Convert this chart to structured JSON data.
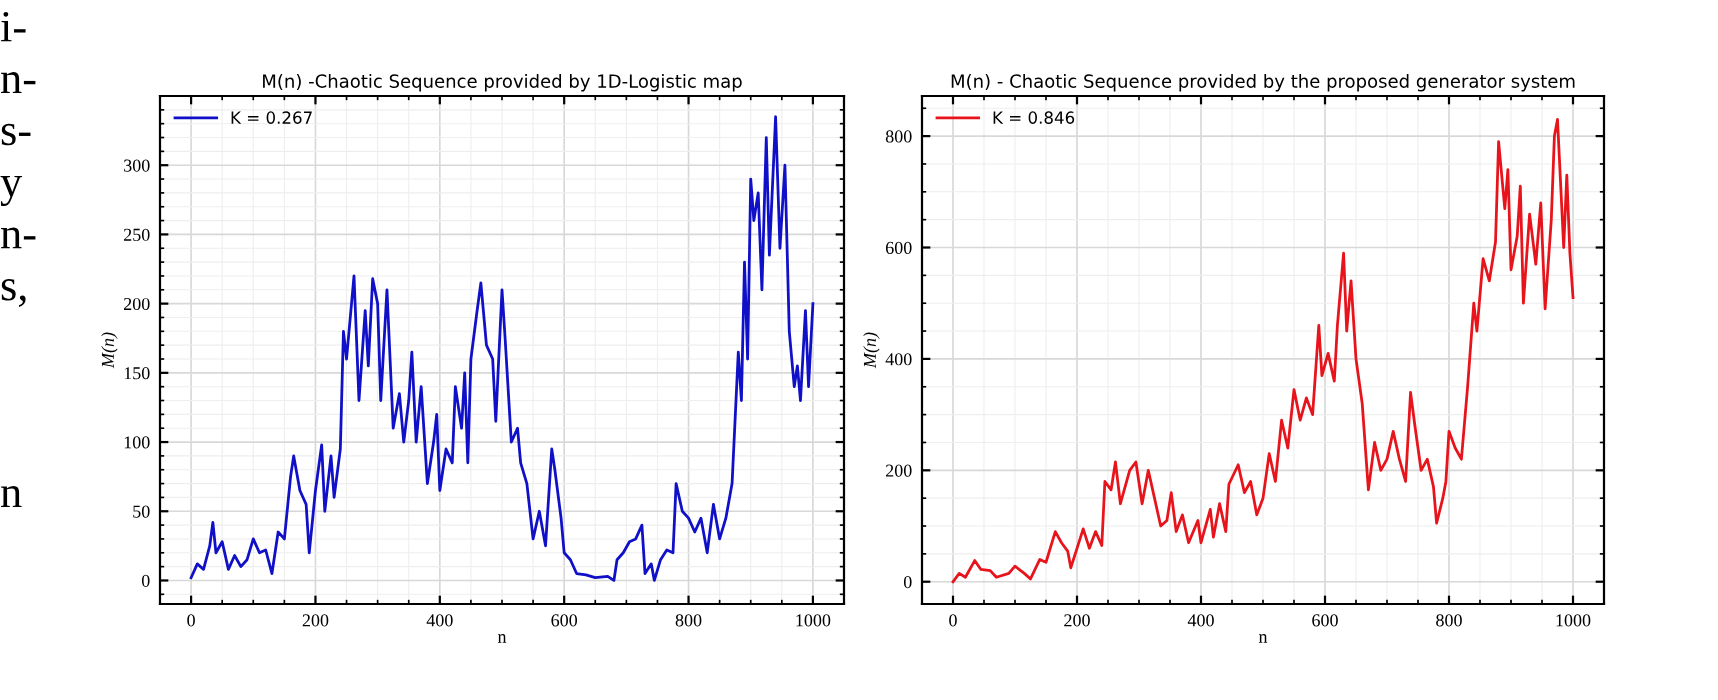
{
  "chart_data": [
    {
      "type": "line",
      "title": "M(n) -Chaotic Sequence provided by 1D-Logistic map",
      "xlabel": "n",
      "ylabel": "M(n)",
      "xlim": [
        -50,
        1050
      ],
      "ylim": [
        -17,
        350
      ],
      "xticks": [
        0,
        200,
        400,
        600,
        800,
        1000
      ],
      "yticks": [
        0,
        50,
        100,
        150,
        200,
        250,
        300
      ],
      "grid": true,
      "legend": "top left",
      "annotations": [
        "i-\nn-\ns-\ny\nn-\ns,\n\n\n\nn"
      ],
      "series": [
        {
          "name": "K = 0.267",
          "color": "#1010c8",
          "x": [
            0,
            10,
            20,
            30,
            35,
            40,
            50,
            60,
            70,
            80,
            90,
            100,
            110,
            120,
            130,
            140,
            150,
            160,
            165,
            175,
            185,
            190,
            200,
            210,
            215,
            225,
            230,
            240,
            245,
            250,
            258,
            262,
            270,
            280,
            285,
            292,
            300,
            305,
            315,
            325,
            335,
            342,
            350,
            355,
            362,
            370,
            380,
            390,
            395,
            400,
            410,
            420,
            425,
            435,
            440,
            445,
            450,
            460,
            466,
            475,
            485,
            490,
            500,
            505,
            515,
            525,
            530,
            540,
            550,
            560,
            570,
            580,
            585,
            595,
            600,
            610,
            620,
            635,
            650,
            670,
            680,
            685,
            695,
            705,
            715,
            725,
            730,
            740,
            745,
            755,
            765,
            775,
            780,
            790,
            800,
            810,
            820,
            830,
            840,
            850,
            860,
            870,
            880,
            885,
            890,
            895,
            900,
            905,
            912,
            918,
            925,
            930,
            940,
            947,
            955,
            962,
            970,
            975,
            980,
            988,
            993,
            1000
          ],
          "values": [
            2,
            12,
            8,
            25,
            42,
            20,
            28,
            8,
            18,
            10,
            15,
            30,
            20,
            22,
            5,
            35,
            30,
            75,
            90,
            65,
            55,
            20,
            65,
            98,
            50,
            90,
            60,
            95,
            180,
            160,
            200,
            220,
            130,
            195,
            155,
            218,
            200,
            130,
            210,
            110,
            135,
            100,
            130,
            165,
            100,
            140,
            70,
            100,
            120,
            65,
            95,
            85,
            140,
            110,
            150,
            85,
            160,
            195,
            215,
            170,
            160,
            115,
            210,
            175,
            100,
            110,
            85,
            70,
            30,
            50,
            25,
            95,
            80,
            45,
            20,
            15,
            5,
            4,
            2,
            3,
            0,
            15,
            20,
            28,
            30,
            40,
            5,
            12,
            0,
            15,
            22,
            20,
            70,
            50,
            45,
            35,
            45,
            20,
            55,
            30,
            45,
            70,
            165,
            130,
            230,
            160,
            290,
            260,
            280,
            210,
            320,
            235,
            335,
            240,
            300,
            180,
            140,
            155,
            130,
            195,
            140,
            200
          ]
        }
      ]
    },
    {
      "type": "line",
      "title": "M(n) - Chaotic Sequence provided by the proposed generator system",
      "xlabel": "n",
      "ylabel": "M(n)",
      "xlim": [
        -50,
        1050
      ],
      "ylim": [
        -40,
        872
      ],
      "xticks": [
        0,
        200,
        400,
        600,
        800,
        1000
      ],
      "yticks": [
        0,
        200,
        400,
        600,
        800
      ],
      "grid": true,
      "legend": "top left",
      "series": [
        {
          "name": "K = 0.846",
          "color": "#e8141c",
          "x": [
            0,
            10,
            20,
            35,
            45,
            60,
            70,
            90,
            100,
            115,
            125,
            140,
            150,
            165,
            175,
            185,
            190,
            200,
            210,
            220,
            230,
            240,
            245,
            255,
            262,
            270,
            285,
            295,
            305,
            315,
            325,
            335,
            345,
            352,
            360,
            370,
            380,
            395,
            400,
            415,
            420,
            430,
            440,
            445,
            460,
            470,
            480,
            490,
            500,
            510,
            520,
            530,
            540,
            550,
            560,
            570,
            580,
            590,
            595,
            605,
            615,
            620,
            630,
            635,
            642,
            650,
            660,
            670,
            680,
            690,
            700,
            710,
            720,
            730,
            738,
            745,
            755,
            765,
            775,
            780,
            790,
            795,
            800,
            810,
            820,
            830,
            840,
            845,
            855,
            865,
            875,
            880,
            890,
            895,
            900,
            910,
            915,
            920,
            930,
            940,
            948,
            955,
            965,
            970,
            975,
            985,
            990,
            995,
            1000
          ],
          "values": [
            0,
            15,
            8,
            38,
            22,
            20,
            8,
            15,
            28,
            15,
            5,
            40,
            35,
            90,
            70,
            55,
            25,
            60,
            95,
            60,
            90,
            65,
            180,
            165,
            215,
            140,
            200,
            215,
            140,
            200,
            150,
            100,
            110,
            160,
            90,
            120,
            70,
            110,
            70,
            130,
            80,
            140,
            90,
            175,
            210,
            160,
            180,
            120,
            150,
            230,
            180,
            290,
            240,
            345,
            290,
            330,
            300,
            460,
            370,
            410,
            360,
            460,
            590,
            450,
            540,
            400,
            320,
            165,
            250,
            200,
            220,
            270,
            220,
            180,
            340,
            280,
            200,
            220,
            170,
            105,
            150,
            180,
            270,
            240,
            220,
            350,
            500,
            450,
            580,
            540,
            610,
            790,
            670,
            740,
            560,
            620,
            710,
            500,
            660,
            570,
            680,
            490,
            650,
            800,
            830,
            600,
            730,
            590,
            510
          ]
        }
      ]
    }
  ]
}
